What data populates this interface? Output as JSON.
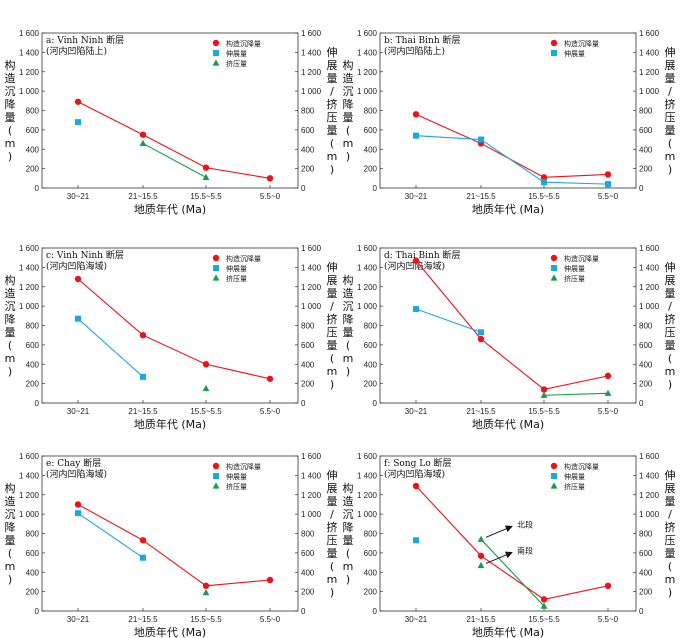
{
  "figure": {
    "x_categories": [
      "30~21",
      "21~15.5",
      "15.5~5.5",
      "5.5~0"
    ],
    "left_ticks": [
      "0",
      "200",
      "400",
      "600",
      "800",
      "1 000",
      "1 200",
      "1 400",
      "1 600"
    ],
    "right_ticks": [
      "0",
      "200",
      "400",
      "600",
      "800",
      "1 000",
      "1 200",
      "1 400",
      "1 600"
    ],
    "left_axis_chars": [
      "构",
      "造",
      "沉",
      "降",
      "量",
      "(",
      "m",
      ")"
    ],
    "right_axis_chars": [
      "伸",
      "展",
      "量",
      "/",
      "挤",
      "压",
      "量",
      "(",
      "m",
      ")"
    ],
    "xlabel": "地质年代 (Ma)",
    "legend": {
      "subsidence": "构造沉降量",
      "extension": "伸展量",
      "compression": "挤压量"
    },
    "colors": {
      "subsidence": "#e8141c",
      "extension": "#19a9e1",
      "compression": "#1a9a4a"
    }
  },
  "chart_data": [
    {
      "type": "line",
      "title": "a: Vinh Ninh 断层",
      "subtitle": "(河内凹陷陆上)",
      "xlabel": "地质年代 (Ma)",
      "ylabel": "构造沉降量(m)",
      "ylabel_right": "伸展量/挤压量(m)",
      "ylim": [
        0,
        1600
      ],
      "categories": [
        "30~21",
        "21~15.5",
        "15.5~5.5",
        "5.5~0"
      ],
      "series": [
        {
          "name": "构造沉降量",
          "values": [
            890,
            550,
            210,
            100
          ]
        },
        {
          "name": "伸展量",
          "values": [
            680,
            null,
            null,
            null
          ]
        },
        {
          "name": "挤压量",
          "values": [
            null,
            460,
            110,
            null
          ]
        }
      ]
    },
    {
      "type": "line",
      "title": "b: Thai Binh 断层",
      "subtitle": "(河内凹陷陆上)",
      "xlabel": "地质年代 (Ma)",
      "ylabel": "构造沉降量(m)",
      "ylabel_right": "伸展量/挤压量(m)",
      "ylim": [
        0,
        1600
      ],
      "categories": [
        "30~21",
        "21~15.5",
        "15.5~5.5",
        "5.5~0"
      ],
      "series": [
        {
          "name": "构造沉降量",
          "values": [
            760,
            460,
            110,
            140
          ]
        },
        {
          "name": "伸展量",
          "values": [
            540,
            500,
            60,
            40
          ]
        }
      ]
    },
    {
      "type": "line",
      "title": "c: Vinh Ninh 断层",
      "subtitle": "(河内凹陷海域)",
      "xlabel": "地质年代 (Ma)",
      "ylabel": "构造沉降量(m)",
      "ylabel_right": "伸展量/挤压量(m)",
      "ylim": [
        0,
        1600
      ],
      "categories": [
        "30~21",
        "21~15.5",
        "15.5~5.5",
        "5.5~0"
      ],
      "series": [
        {
          "name": "构造沉降量",
          "values": [
            1280,
            700,
            400,
            250
          ]
        },
        {
          "name": "伸展量",
          "values": [
            870,
            270,
            null,
            null
          ]
        },
        {
          "name": "挤压量",
          "values": [
            null,
            null,
            150,
            null
          ]
        }
      ]
    },
    {
      "type": "line",
      "title": "d: Thai Binh 断层",
      "subtitle": "(河内凹陷海域)",
      "xlabel": "地质年代 (Ma)",
      "ylabel": "构造沉降量(m)",
      "ylabel_right": "伸展量/挤压量(m)",
      "ylim": [
        0,
        1600
      ],
      "categories": [
        "30~21",
        "21~15.5",
        "15.5~5.5",
        "5.5~0"
      ],
      "series": [
        {
          "name": "构造沉降量",
          "values": [
            1470,
            660,
            140,
            280
          ]
        },
        {
          "name": "伸展量",
          "values": [
            970,
            730,
            null,
            null
          ]
        },
        {
          "name": "挤压量",
          "values": [
            null,
            null,
            80,
            100
          ]
        }
      ]
    },
    {
      "type": "line",
      "title": "e: Chay 断层",
      "subtitle": "(河内凹陷海域)",
      "xlabel": "地质年代 (Ma)",
      "ylabel": "构造沉降量(m)",
      "ylabel_right": "伸展量/挤压量(m)",
      "ylim": [
        0,
        1600
      ],
      "categories": [
        "30~21",
        "21~15.5",
        "15.5~5.5",
        "5.5~0"
      ],
      "series": [
        {
          "name": "构造沉降量",
          "values": [
            1100,
            730,
            260,
            320
          ]
        },
        {
          "name": "伸展量",
          "values": [
            1010,
            550,
            null,
            null
          ]
        },
        {
          "name": "挤压量",
          "values": [
            null,
            null,
            190,
            null
          ]
        }
      ]
    },
    {
      "type": "line",
      "title": "f: Song Lo 断层",
      "subtitle": "(河内凹陷海域)",
      "xlabel": "地质年代 (Ma)",
      "ylabel": "构造沉降量(m)",
      "ylabel_right": "伸展量/挤压量(m)",
      "ylim": [
        0,
        1600
      ],
      "categories": [
        "30~21",
        "21~15.5",
        "15.5~5.5",
        "5.5~0"
      ],
      "series": [
        {
          "name": "构造沉降量",
          "values": [
            1290,
            570,
            120,
            260
          ]
        },
        {
          "name": "伸展量",
          "values": [
            730,
            null,
            null,
            null
          ]
        },
        {
          "name": "挤压量",
          "values": [
            null,
            740,
            50,
            null
          ]
        },
        {
          "name": "挤压量",
          "values": [
            null,
            470,
            null,
            null
          ]
        }
      ],
      "annotations": [
        {
          "text": "北段",
          "at_category": "21~15.5",
          "at_value": 740
        },
        {
          "text": "南段",
          "at_category": "21~15.5",
          "at_value": 470
        }
      ]
    }
  ]
}
